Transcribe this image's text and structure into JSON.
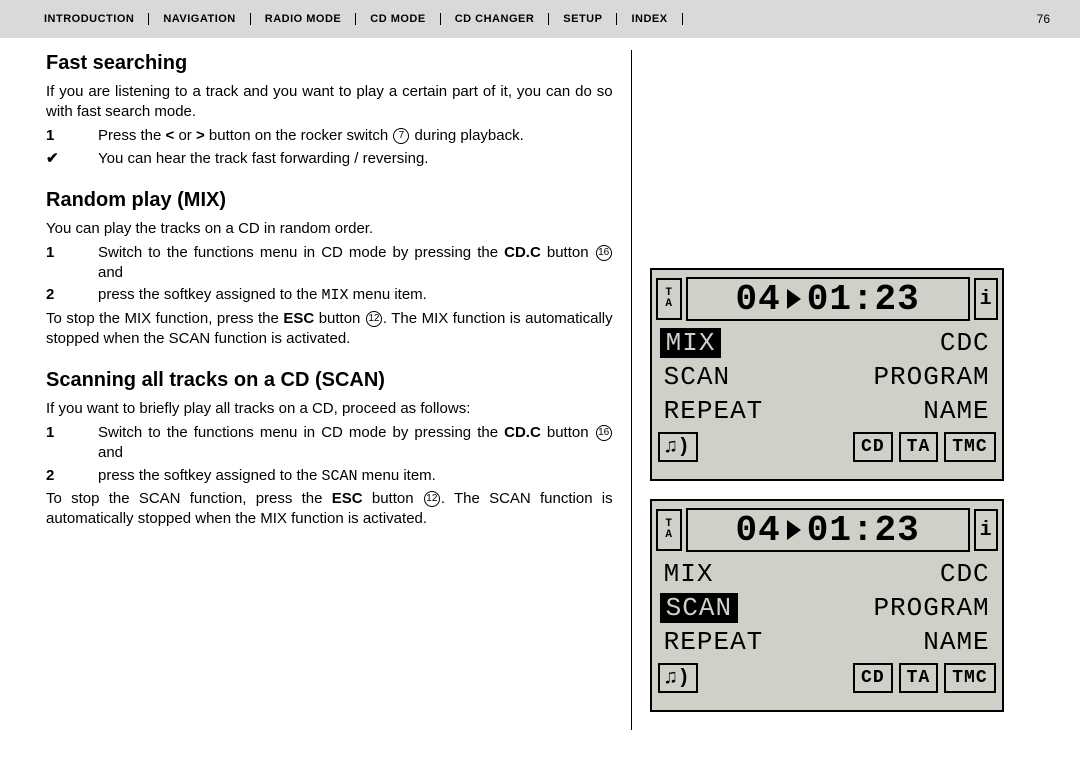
{
  "nav": {
    "items": [
      "Introduction",
      "Navigation",
      "Radio Mode",
      "Cd Mode",
      "Cd Changer",
      "Setup",
      "Index"
    ],
    "active_index": 3,
    "page_number": "76"
  },
  "sections": {
    "fast_search": {
      "title": "Fast searching",
      "intro": "If you are listening to a track and you want to play a certain part of it, you can do so with fast search mode.",
      "step1_num": "1",
      "step1_a": "Press the ",
      "step1_b": " or ",
      "step1_c": " button on the rocker switch ",
      "step1_ref": "7",
      "step1_d": " during playback.",
      "check": "You can hear the track fast forwarding / reversing."
    },
    "random": {
      "title": "Random play (MIX)",
      "intro": "You can play the tracks on a CD in random order.",
      "step1_num": "1",
      "step1_a": "Switch to the functions menu in CD mode by pressing the ",
      "step1_btn": "CD.C",
      "step1_b": " button ",
      "step1_ref": "16",
      "step1_c": " and",
      "step2_num": "2",
      "step2_a": "press the softkey assigned to the ",
      "step2_menu": "MIX",
      "step2_b": " menu item.",
      "outro_a": "To stop the MIX function, press the ",
      "outro_btn": "ESC",
      "outro_b": " button ",
      "outro_ref": "12",
      "outro_c": ". The MIX function is automatically stopped when the SCAN function is activated."
    },
    "scan": {
      "title": "Scanning all tracks on a CD (SCAN)",
      "intro": "If you want to briefly play all tracks on a CD, proceed as follows:",
      "step1_num": "1",
      "step1_a": "Switch to the functions menu in CD mode by pressing the ",
      "step1_btn": "CD.C",
      "step1_b": " button ",
      "step1_ref": "16",
      "step1_c": " and",
      "step2_num": "2",
      "step2_a": "press the softkey assigned to the ",
      "step2_menu": "SCAN",
      "step2_b": " menu item.",
      "outro_a": "To stop the SCAN function, press the ",
      "outro_btn": "ESC",
      "outro_b": " button ",
      "outro_ref": "12",
      "outro_c": ". The SCAN function is automatically stopped when the MIX function is activated."
    }
  },
  "lcd_common": {
    "ta_top": "T",
    "ta_bot": "A",
    "track": "04",
    "time": "01:23",
    "info": "i",
    "menu": {
      "mix": "MIX",
      "cdc": "CDC",
      "scan": "SCAN",
      "program": "PROGRAM",
      "repeat": "REPEAT",
      "name": "NAME"
    },
    "bottom": {
      "cd": "CD",
      "ta": "TA",
      "tmc": "TMC"
    }
  },
  "lcd1_highlight": "mix",
  "lcd2_highlight": "scan",
  "colors": {
    "lcd_bg": "#d0d0c8",
    "nav_bg": "#d9d9d9",
    "text": "#000000"
  }
}
